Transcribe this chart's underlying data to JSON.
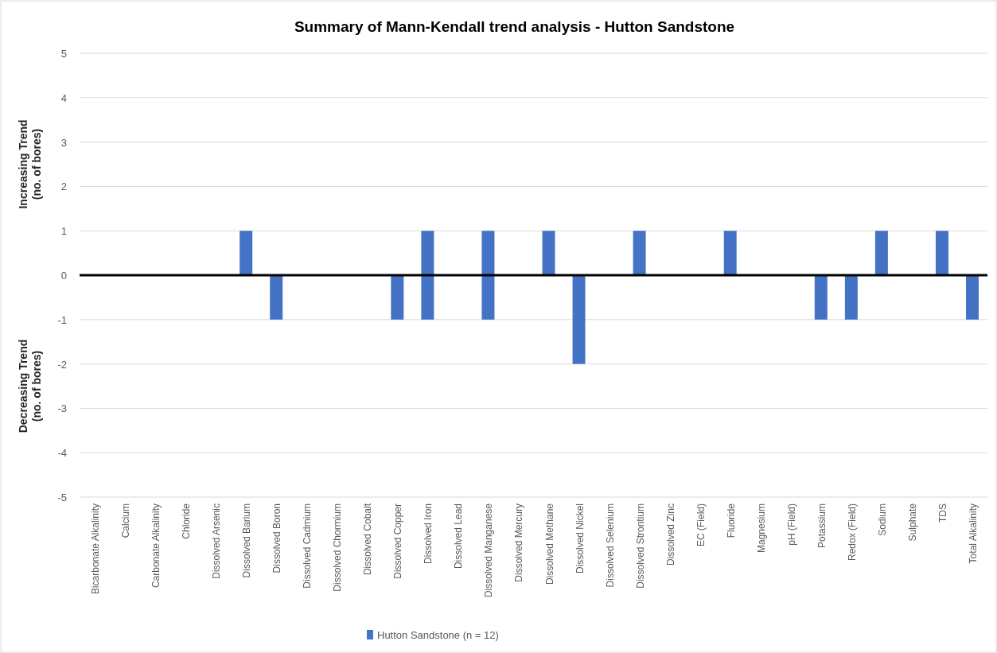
{
  "chart_data": {
    "type": "bar",
    "title": "Summary of Mann-Kendall trend analysis - Hutton Sandstone",
    "ylabel": "Increasing Trend (no. of bores)",
    "annotations": [
      "Decreasing Trend (no. of bores)"
    ],
    "categories": [
      "Bicarbonate Alkalinity",
      "Calcium",
      "Carbonate Alkalinity",
      "Chloride",
      "Dissolved Arsenic",
      "Dissolved Barium",
      "Dissolved Boron",
      "Dissolved Cadmium",
      "Dissolved Chormium",
      "Dissolved Cobalt",
      "Dissolved Copper",
      "Dissolved Iron",
      "Dissolved Lead",
      "Dissolved Manganese",
      "Dissolved Mercury",
      "Dissolved Methane",
      "Dissolved Nickel",
      "Dissolved Selenium",
      "Dissolved Strontium",
      "Dissolved Zinc",
      "EC (Field)",
      "Fluoride",
      "Magnesium",
      "pH (Field)",
      "Potassium",
      "Redox (Field)",
      "Sodium",
      "Sulphate",
      "TDS",
      "Total Alkalinity"
    ],
    "series": [
      {
        "name": "Hutton Sandstone (n = 12)",
        "color": "#4472c4",
        "values": [
          0,
          0,
          0,
          0,
          0,
          1,
          0,
          0,
          0,
          0,
          0,
          1,
          0,
          1,
          0,
          1,
          0,
          0,
          1,
          0,
          0,
          1,
          0,
          0,
          0,
          0,
          1,
          0,
          1,
          0
        ]
      },
      {
        "color": "#4472c4",
        "values": [
          0,
          0,
          0,
          0,
          0,
          0,
          -1,
          0,
          0,
          0,
          -1,
          -1,
          0,
          -1,
          0,
          0,
          -2,
          0,
          0,
          0,
          0,
          0,
          0,
          0,
          -1,
          -1,
          0,
          0,
          0,
          -1
        ]
      }
    ],
    "stacked": true,
    "ylim": [
      -5,
      5
    ],
    "yticks": [
      -5,
      -4,
      -3,
      -2,
      -1,
      0,
      1,
      2,
      3,
      4,
      5
    ],
    "grid": "y",
    "legend": "bottom"
  }
}
